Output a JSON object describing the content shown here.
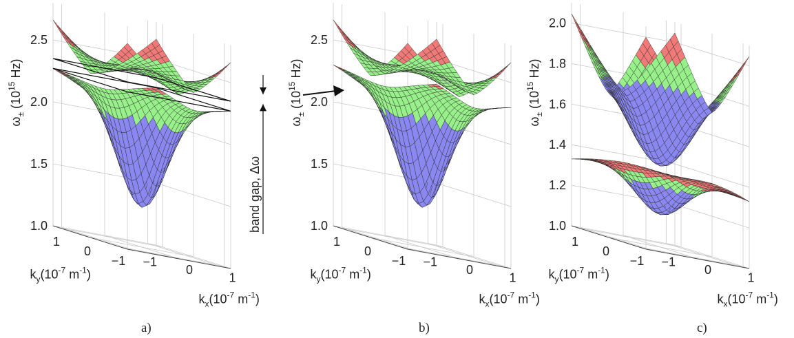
{
  "colors": {
    "red": "#f07a78",
    "green": "#98f08a",
    "blue": "#8a88f0",
    "grid": "#c8c8c8",
    "mesh": "#2a2a2a"
  },
  "chart_data": [
    {
      "type": "surface",
      "panel_label": "a)",
      "zlabel": "ω± (10^15 Hz)",
      "xlabel": "kx (10^-7 m^-1)",
      "ylabel": "ky (10^-7 m^-1)",
      "zlim": [
        1.0,
        2.8
      ],
      "z_ticks": [
        "1.0",
        "1.5",
        "2.0",
        "2.5"
      ],
      "z_tick_values": [
        1.0,
        1.5,
        2.0,
        2.5
      ],
      "kx_ticks": [
        "1",
        "0",
        "−1"
      ],
      "ky_ticks": [
        "1",
        "0",
        "−1"
      ],
      "kx_range": [
        -1.2,
        1.2
      ],
      "ky_range": [
        -1.2,
        1.2
      ],
      "lower_band": {
        "center": 1.32,
        "edge": 2.22,
        "corner": 2.27
      },
      "upper_band": {
        "center": 2.45,
        "edge": 2.31,
        "corner": 2.66
      },
      "band_gap": {
        "lower": 2.27,
        "upper": 2.35,
        "label": "band gap, Δω"
      },
      "grid": true
    },
    {
      "type": "surface",
      "panel_label": "b)",
      "zlabel": "ω± (10^15 Hz)",
      "xlabel": "kx (10^-7 m^-1)",
      "ylabel": "ky (10^-7 m^-1)",
      "zlim": [
        1.0,
        2.8
      ],
      "z_ticks": [
        "1.0",
        "1.5",
        "2.0",
        "2.5"
      ],
      "z_tick_values": [
        1.0,
        1.5,
        2.0,
        2.5
      ],
      "kx_ticks": [
        "1",
        "0",
        "−1"
      ],
      "ky_ticks": [
        "1",
        "0",
        "−1"
      ],
      "kx_range": [
        -1.2,
        1.2
      ],
      "ky_range": [
        -1.2,
        1.2
      ],
      "lower_band": {
        "center": 1.32,
        "edge": 2.24,
        "corner": 2.3
      },
      "upper_band": {
        "center": 2.45,
        "edge": 2.29,
        "corner": 2.66
      },
      "grid": true
    },
    {
      "type": "surface",
      "panel_label": "c)",
      "zlabel": "ω± (10^15 Hz)",
      "xlabel": "kx (10^-7 m^-1)",
      "ylabel": "ky (10^-7 m^-1)",
      "zlim": [
        1.0,
        2.1
      ],
      "z_ticks": [
        "1.0",
        "1.2",
        "1.4",
        "1.6",
        "1.8",
        "2.0"
      ],
      "z_tick_values": [
        1.0,
        1.2,
        1.4,
        1.6,
        1.8,
        2.0
      ],
      "kx_ticks": [
        "1",
        "0",
        "−1"
      ],
      "ky_ticks": [
        "1",
        "0",
        "−1"
      ],
      "kx_range": [
        -1.2,
        1.2
      ],
      "ky_range": [
        -1.2,
        1.2
      ],
      "lower_band": {
        "center": 1.16,
        "edge": 1.37,
        "corner": 1.33
      },
      "upper_band": {
        "center": 1.4,
        "edge": 1.75,
        "corner": 2.05
      },
      "grid": true
    }
  ],
  "arrow_b": {
    "label": ""
  }
}
